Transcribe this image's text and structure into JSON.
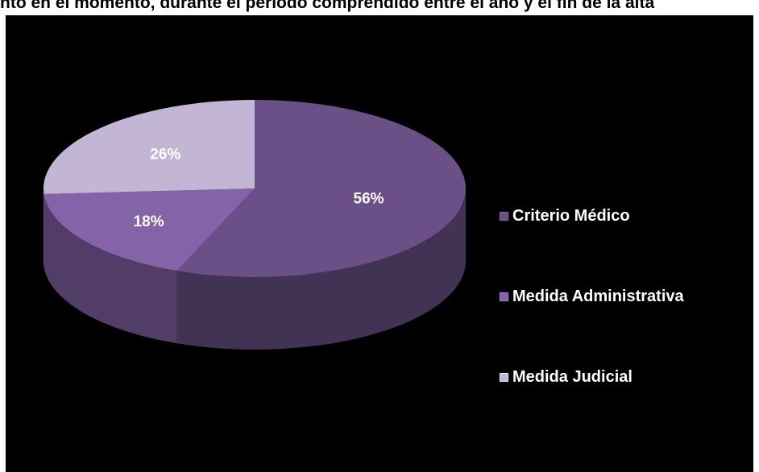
{
  "header": {
    "title_fragment": "...el momento, durante el período comprendido entre el año y el fin de la alta...",
    "title_visible": "nto en el momento, durante el período comprendido entre el año y el fin de la alta "
  },
  "chart_data": {
    "type": "pie",
    "style": "3d",
    "title": "",
    "categories": [
      "Criterio Médico",
      "Medida Administrativa",
      "Medida Judicial"
    ],
    "values": [
      56,
      18,
      26
    ],
    "labels": [
      "56%",
      "18%",
      "26%"
    ],
    "colors": [
      "#6b5088",
      "#8463a9",
      "#c3b6d4"
    ],
    "legend": {
      "placement": "right",
      "entries": [
        "Criterio Médico",
        "Medida Administrativa",
        "Medida Judicial"
      ]
    },
    "background": "#000000"
  }
}
